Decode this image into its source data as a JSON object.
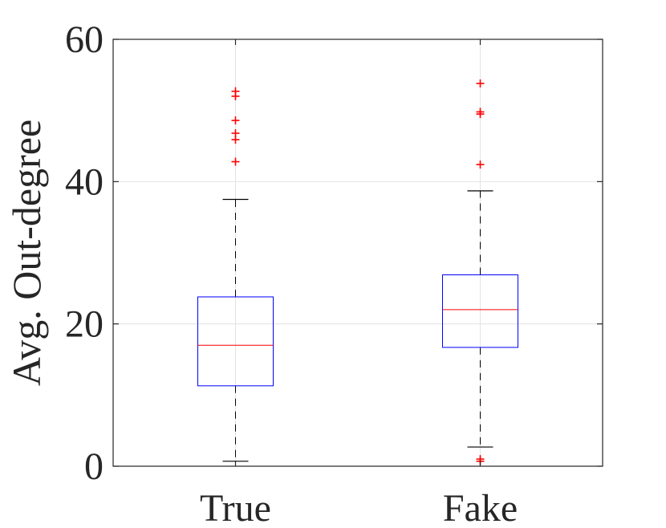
{
  "chart_data": {
    "type": "box",
    "title": "",
    "xlabel": "",
    "ylabel": "Avg. Out-degree",
    "ylim": [
      0,
      60
    ],
    "yticks": [
      0,
      20,
      40,
      60
    ],
    "grid": true,
    "categories": [
      "True",
      "Fake"
    ],
    "boxes": [
      {
        "category": "True",
        "whisker_low": 0.7,
        "q1": 11.3,
        "median": 17.0,
        "q3": 23.8,
        "whisker_high": 37.5,
        "outliers": [
          42.8,
          45.9,
          46.8,
          48.6,
          52.0,
          52.7
        ]
      },
      {
        "category": "Fake",
        "whisker_low": 2.7,
        "q1": 16.7,
        "median": 22.0,
        "q3": 26.9,
        "whisker_high": 38.7,
        "outliers": [
          0.7,
          1.0,
          42.4,
          49.5,
          49.8,
          53.8
        ]
      }
    ],
    "colors": {
      "box": "#0000ff",
      "median": "#ff0000",
      "whisker": "#000000",
      "outlier": "#ff0000",
      "grid": "#e3e3e3",
      "axis": "#262626"
    }
  }
}
